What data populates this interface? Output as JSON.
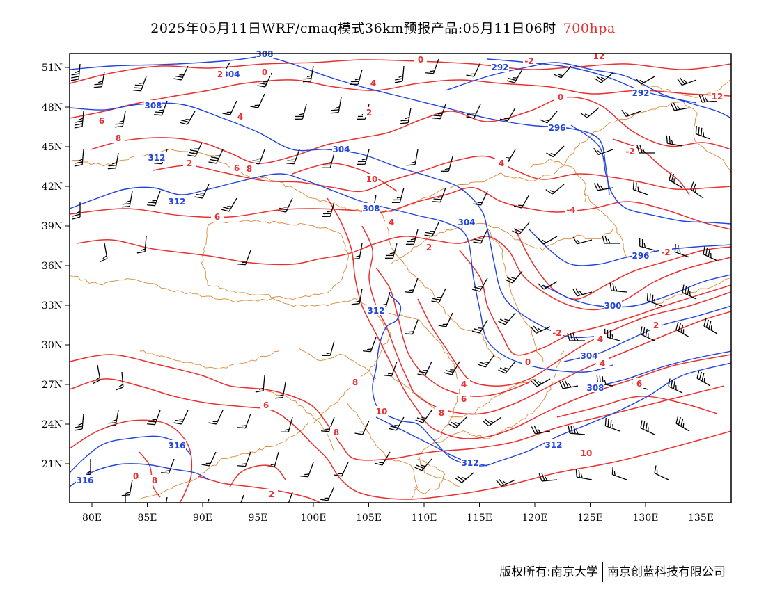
{
  "header": {
    "title": "2025年05月11日WRF/cmaq模式36km预报产品:05月11日06时",
    "level": "700hpa"
  },
  "colors": {
    "geopotential": "#2244dd",
    "temperature": "#e83030",
    "border": "#d98a3a",
    "wind": "#000000",
    "frame": "#000000"
  },
  "axes": {
    "x_ticks": [
      "80E",
      "85E",
      "90E",
      "95E",
      "100E",
      "105E",
      "110E",
      "115E",
      "120E",
      "125E",
      "130E",
      "135E"
    ],
    "y_ticks": [
      "51N",
      "48N",
      "45N",
      "42N",
      "39N",
      "36N",
      "33N",
      "30N",
      "27N",
      "24N",
      "21N"
    ],
    "lon_range": [
      78,
      138
    ],
    "lat_range": [
      18,
      52
    ]
  },
  "map": {
    "geopotential_contour_labels": [
      "304",
      "292",
      "292",
      "308",
      "296",
      "312",
      "304",
      "312",
      "308",
      "304",
      "296",
      "300",
      "304",
      "312",
      "308",
      "316",
      "316",
      "312",
      "312",
      "308"
    ],
    "temperature_contour_labels": [
      "2",
      "0",
      "-2",
      "0",
      "4",
      "0",
      "2",
      "4",
      "6",
      "8",
      "2",
      "-2",
      "4",
      "6",
      "8",
      "10",
      "6",
      "4",
      "2",
      "-4",
      "-2",
      "-2",
      "4",
      "2",
      "0",
      "4",
      "6",
      "8",
      "10",
      "8",
      "8",
      "6",
      "4",
      "6",
      "2",
      "8",
      "10",
      "12",
      "12",
      "0"
    ],
    "icons": {
      "wind": "wind-barb-icon"
    }
  },
  "footer": {
    "copyright_left": "版权所有:南京大学",
    "copyright_right": "南京创蓝科技有限公司"
  }
}
